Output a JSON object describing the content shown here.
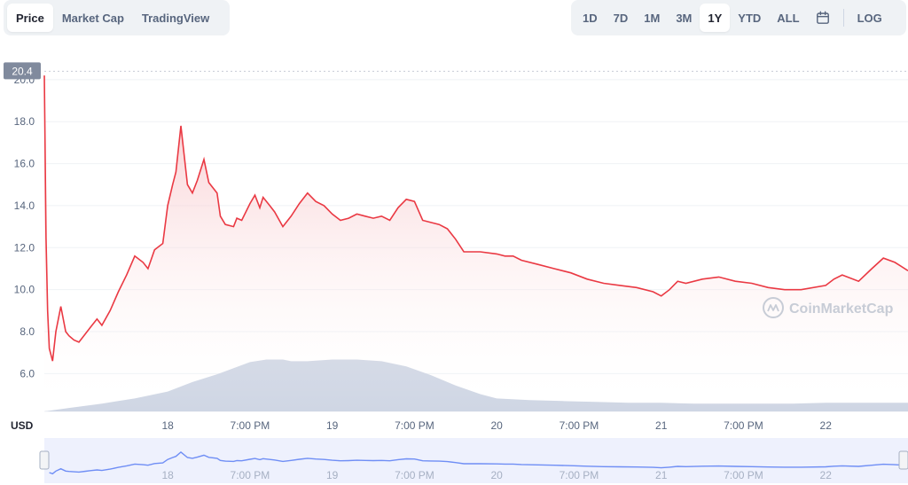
{
  "tabs": [
    {
      "label": "Price",
      "active": true
    },
    {
      "label": "Market Cap",
      "active": false
    },
    {
      "label": "TradingView",
      "active": false
    }
  ],
  "ranges": [
    {
      "label": "1D",
      "active": false
    },
    {
      "label": "7D",
      "active": false
    },
    {
      "label": "1M",
      "active": false
    },
    {
      "label": "3M",
      "active": false
    },
    {
      "label": "1Y",
      "active": true
    },
    {
      "label": "YTD",
      "active": false
    },
    {
      "label": "ALL",
      "active": false
    }
  ],
  "calendar_icon": "calendar-icon",
  "log_label": "LOG",
  "currency_label": "USD",
  "watermark": "CoinMarketCap",
  "colors": {
    "line": "#ea3943",
    "area_top": "#f6b9bd",
    "volume": "#cfd6e4",
    "navigator_line": "#6f8ef5",
    "navigator_fill": "#eef1fd",
    "current_price_tag": "#808a9d"
  },
  "chart_data": {
    "type": "line",
    "current_price_label": "20.4",
    "y_ticks": [
      "6.0",
      "8.0",
      "10.0",
      "12.0",
      "14.0",
      "16.0",
      "18.0",
      "20.0"
    ],
    "ylim": [
      4.2,
      20.5
    ],
    "x_tick_labels": [
      "18",
      "7:00 PM",
      "19",
      "7:00 PM",
      "20",
      "7:00 PM",
      "21",
      "7:00 PM",
      "22"
    ],
    "x_ticks": [
      18.0,
      18.5,
      19.0,
      19.5,
      20.0,
      20.5,
      21.0,
      21.5,
      22.0
    ],
    "xlim": [
      17.25,
      22.5
    ],
    "price": {
      "x": [
        17.25,
        17.26,
        17.27,
        17.28,
        17.3,
        17.32,
        17.35,
        17.38,
        17.4,
        17.43,
        17.46,
        17.5,
        17.53,
        17.57,
        17.6,
        17.65,
        17.7,
        17.75,
        17.8,
        17.85,
        17.88,
        17.92,
        17.97,
        18.0,
        18.03,
        18.05,
        18.08,
        18.12,
        18.15,
        18.18,
        18.22,
        18.25,
        18.3,
        18.32,
        18.35,
        18.4,
        18.42,
        18.45,
        18.5,
        18.53,
        18.56,
        18.58,
        18.62,
        18.65,
        18.7,
        18.75,
        18.8,
        18.85,
        18.9,
        18.95,
        19.0,
        19.05,
        19.1,
        19.15,
        19.2,
        19.25,
        19.3,
        19.35,
        19.4,
        19.45,
        19.5,
        19.55,
        19.6,
        19.65,
        19.7,
        19.75,
        19.8,
        19.9,
        20.0,
        20.05,
        20.1,
        20.15,
        20.25,
        20.35,
        20.45,
        20.55,
        20.65,
        20.75,
        20.85,
        20.95,
        21.0,
        21.05,
        21.1,
        21.15,
        21.25,
        21.35,
        21.45,
        21.55,
        21.65,
        21.75,
        21.85,
        22.0,
        22.05,
        22.1,
        22.2,
        22.28,
        22.35,
        22.42,
        22.5
      ],
      "y": [
        20.2,
        12.5,
        9.0,
        7.2,
        6.6,
        8.0,
        9.2,
        8.0,
        7.8,
        7.6,
        7.5,
        7.9,
        8.2,
        8.6,
        8.3,
        9.0,
        9.9,
        10.7,
        11.6,
        11.3,
        11.0,
        11.9,
        12.2,
        14.0,
        15.0,
        15.6,
        17.8,
        15.0,
        14.6,
        15.2,
        16.2,
        15.1,
        14.6,
        13.5,
        13.1,
        13.0,
        13.4,
        13.3,
        14.1,
        14.5,
        13.9,
        14.4,
        14.0,
        13.7,
        13.0,
        13.5,
        14.1,
        14.6,
        14.2,
        14.0,
        13.6,
        13.3,
        13.4,
        13.6,
        13.5,
        13.4,
        13.5,
        13.3,
        13.9,
        14.3,
        14.2,
        13.3,
        13.2,
        13.1,
        12.9,
        12.4,
        11.8,
        11.8,
        11.7,
        11.6,
        11.6,
        11.4,
        11.2,
        11.0,
        10.8,
        10.5,
        10.3,
        10.2,
        10.1,
        9.9,
        9.7,
        10.0,
        10.4,
        10.3,
        10.5,
        10.6,
        10.4,
        10.3,
        10.1,
        10.0,
        10.0,
        10.2,
        10.5,
        10.7,
        10.4,
        11.0,
        11.5,
        11.3,
        10.9
      ]
    },
    "volume": {
      "x": [
        17.25,
        17.4,
        17.6,
        17.8,
        18.0,
        18.15,
        18.3,
        18.4,
        18.5,
        18.6,
        18.7,
        18.75,
        18.85,
        19.0,
        19.15,
        19.3,
        19.45,
        19.6,
        19.75,
        19.9,
        20.0,
        20.2,
        20.4,
        20.6,
        20.8,
        21.0,
        21.2,
        21.4,
        21.6,
        21.8,
        22.0,
        22.2,
        22.5
      ],
      "y": [
        0.0,
        0.4,
        0.9,
        1.5,
        2.3,
        3.4,
        4.3,
        5.0,
        5.7,
        6.0,
        6.0,
        5.8,
        5.8,
        6.0,
        6.0,
        5.8,
        5.2,
        4.2,
        3.0,
        2.0,
        1.5,
        1.3,
        1.2,
        1.1,
        1.0,
        1.0,
        0.9,
        0.9,
        0.9,
        0.9,
        1.0,
        1.0,
        1.0
      ],
      "ylim": [
        0,
        10
      ]
    }
  }
}
